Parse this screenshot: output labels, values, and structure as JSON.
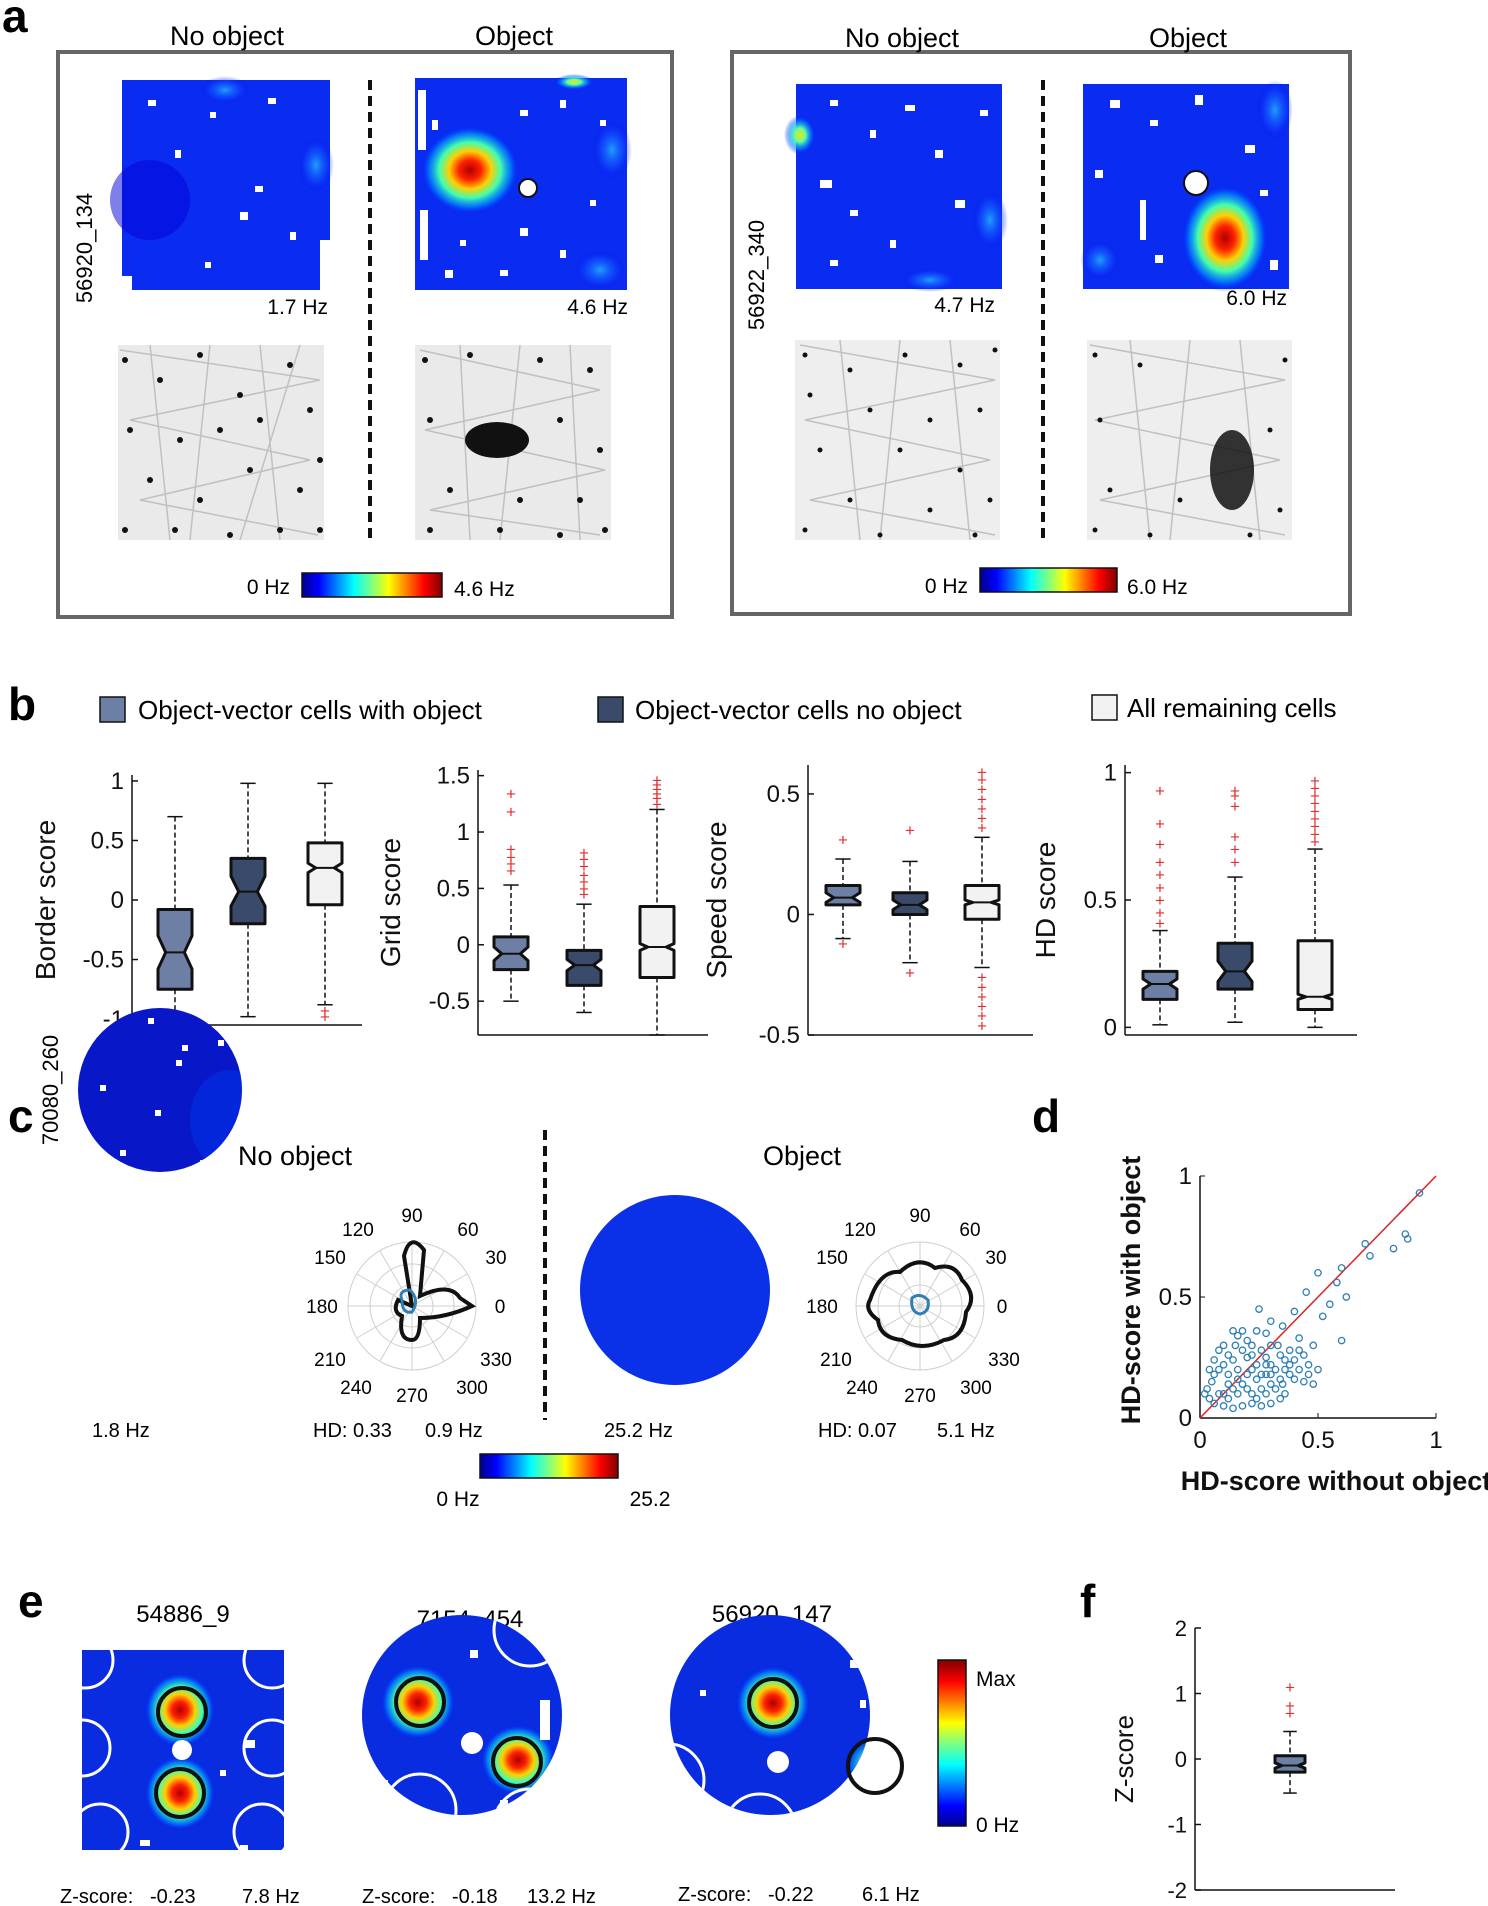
{
  "panel_labels": [
    "a",
    "b",
    "c",
    "d",
    "e",
    "f"
  ],
  "colorscale": {
    "jet": [
      "#00008f",
      "#0000ff",
      "#0080ff",
      "#00ffff",
      "#80ff80",
      "#ffff00",
      "#ff8000",
      "#ff0000",
      "#800000"
    ],
    "white": "#ffffff",
    "object_fill": "#ffffff"
  },
  "panel_a": {
    "cells": [
      {
        "cell_id": "56920_134",
        "no_object": {
          "title": "No object",
          "peak": "1.7 Hz"
        },
        "object": {
          "title": "Object",
          "peak": "4.6 Hz"
        },
        "colorbar": {
          "min": "0 Hz",
          "max": "4.6 Hz"
        }
      },
      {
        "cell_id": "56922_340",
        "no_object": {
          "title": "No object",
          "peak": "4.7 Hz"
        },
        "object": {
          "title": "Object",
          "peak": "6.0 Hz"
        },
        "colorbar": {
          "min": "0 Hz",
          "max": "6.0 Hz"
        }
      }
    ]
  },
  "panel_b": {
    "legend": [
      {
        "label": "Object-vector cells with object",
        "color": "#6e7fa6"
      },
      {
        "label": "Object-vector cells no object",
        "color": "#3a4a6b"
      },
      {
        "label": "All remaining cells",
        "color": "#f2f2f2"
      }
    ],
    "outlier_color": "#e03030"
  },
  "chart_data": [
    {
      "type": "box",
      "ylabel": "Border score",
      "ylim": [
        -1.05,
        1.05
      ],
      "yticks": [
        -1,
        -0.5,
        0,
        0.5,
        1
      ],
      "ytick_labels": [
        "-1",
        "-0.5",
        "0",
        "0.5",
        "1"
      ],
      "categories": [
        "Object-vector cells with object",
        "Object-vector cells no object",
        "All remaining cells"
      ],
      "boxes": [
        {
          "q1": -0.75,
          "median": -0.44,
          "q3": -0.08,
          "notch_lo": -0.58,
          "notch_hi": -0.3,
          "whisker_lo": -0.98,
          "whisker_hi": 0.7,
          "outliers": []
        },
        {
          "q1": -0.2,
          "median": 0.07,
          "q3": 0.35,
          "notch_lo": -0.05,
          "notch_hi": 0.2,
          "whisker_lo": -0.98,
          "whisker_hi": 0.98,
          "outliers": []
        },
        {
          "q1": -0.04,
          "median": 0.27,
          "q3": 0.48,
          "notch_lo": 0.23,
          "notch_hi": 0.31,
          "whisker_lo": -0.88,
          "whisker_hi": 0.98,
          "outliers": [
            -0.93,
            -0.98
          ]
        }
      ]
    },
    {
      "type": "box",
      "ylabel": "Grid score",
      "ylim": [
        -0.8,
        1.55
      ],
      "yticks": [
        -0.5,
        0,
        0.5,
        1,
        1.5
      ],
      "ytick_labels": [
        "-0.5",
        "0",
        "0.5",
        "1",
        "1.5"
      ],
      "categories": [
        "Object-vector cells with object",
        "Object-vector cells no object",
        "All remaining cells"
      ],
      "boxes": [
        {
          "q1": -0.22,
          "median": -0.08,
          "q3": 0.07,
          "notch_lo": -0.14,
          "notch_hi": -0.02,
          "whisker_lo": -0.5,
          "whisker_hi": 0.53,
          "outliers": [
            0.66,
            0.72,
            0.78,
            0.85,
            1.18,
            1.34
          ]
        },
        {
          "q1": -0.36,
          "median": -0.18,
          "q3": -0.05,
          "notch_lo": -0.23,
          "notch_hi": -0.13,
          "whisker_lo": -0.6,
          "whisker_hi": 0.36,
          "outliers": [
            0.45,
            0.5,
            0.56,
            0.62,
            0.7,
            0.76,
            0.82
          ]
        },
        {
          "q1": -0.29,
          "median": -0.02,
          "q3": 0.34,
          "notch_lo": -0.05,
          "notch_hi": 0.01,
          "whisker_lo": -0.8,
          "whisker_hi": 1.2,
          "outliers": [
            1.25,
            1.3,
            1.34,
            1.38,
            1.42,
            1.46
          ]
        }
      ]
    },
    {
      "type": "box",
      "ylabel": "Speed score",
      "ylim": [
        -0.5,
        0.62
      ],
      "yticks": [
        -0.5,
        0,
        0.5
      ],
      "ytick_labels": [
        "-0.5",
        "0",
        "0.5"
      ],
      "categories": [
        "Object-vector cells with object",
        "Object-vector cells no object",
        "All remaining cells"
      ],
      "boxes": [
        {
          "q1": 0.04,
          "median": 0.07,
          "q3": 0.12,
          "notch_lo": 0.05,
          "notch_hi": 0.09,
          "whisker_lo": -0.1,
          "whisker_hi": 0.23,
          "outliers": [
            0.31,
            -0.12
          ]
        },
        {
          "q1": 0.0,
          "median": 0.04,
          "q3": 0.09,
          "notch_lo": 0.02,
          "notch_hi": 0.06,
          "whisker_lo": -0.2,
          "whisker_hi": 0.22,
          "outliers": [
            0.35,
            -0.24
          ]
        },
        {
          "q1": -0.02,
          "median": 0.05,
          "q3": 0.12,
          "notch_lo": 0.04,
          "notch_hi": 0.06,
          "whisker_lo": -0.22,
          "whisker_hi": 0.32,
          "outliers": [
            0.36,
            0.4,
            0.44,
            0.48,
            0.52,
            0.56,
            0.59,
            -0.26,
            -0.3,
            -0.34,
            -0.38,
            -0.42,
            -0.46
          ]
        }
      ]
    },
    {
      "type": "box",
      "ylabel": "HD score",
      "ylim": [
        -0.03,
        1.03
      ],
      "yticks": [
        0,
        0.5,
        1
      ],
      "ytick_labels": [
        "0",
        "0.5",
        "1"
      ],
      "categories": [
        "Object-vector cells with object",
        "Object-vector cells no object",
        "All remaining cells"
      ],
      "boxes": [
        {
          "q1": 0.11,
          "median": 0.17,
          "q3": 0.22,
          "notch_lo": 0.15,
          "notch_hi": 0.19,
          "whisker_lo": 0.01,
          "whisker_hi": 0.38,
          "outliers": [
            0.41,
            0.45,
            0.5,
            0.55,
            0.6,
            0.65,
            0.72,
            0.8,
            0.93
          ]
        },
        {
          "q1": 0.15,
          "median": 0.22,
          "q3": 0.33,
          "notch_lo": 0.18,
          "notch_hi": 0.26,
          "whisker_lo": 0.02,
          "whisker_hi": 0.59,
          "outliers": [
            0.65,
            0.7,
            0.75,
            0.87,
            0.91,
            0.93
          ]
        },
        {
          "q1": 0.07,
          "median": 0.12,
          "q3": 0.34,
          "notch_lo": 0.11,
          "notch_hi": 0.13,
          "whisker_lo": 0.0,
          "whisker_hi": 0.7,
          "outliers": [
            0.73,
            0.76,
            0.79,
            0.82,
            0.85,
            0.88,
            0.91,
            0.94,
            0.97
          ]
        }
      ]
    },
    {
      "type": "scatter",
      "xlabel": "HD-score without object",
      "ylabel": "HD-score with object",
      "xlim": [
        0,
        1
      ],
      "ylim": [
        0,
        1
      ],
      "xticks": [
        0,
        0.5,
        1
      ],
      "xtick_labels": [
        "0",
        "0.5",
        "1"
      ],
      "yticks": [
        0,
        0.5,
        1
      ],
      "ytick_labels": [
        "0",
        "0.5",
        "1"
      ],
      "identity_line": true,
      "marker_color": "#2f7fb5",
      "line_color": "#e02020",
      "points": [
        [
          0.93,
          0.93
        ],
        [
          0.88,
          0.74
        ],
        [
          0.87,
          0.76
        ],
        [
          0.82,
          0.7
        ],
        [
          0.72,
          0.67
        ],
        [
          0.7,
          0.72
        ],
        [
          0.6,
          0.62
        ],
        [
          0.58,
          0.56
        ],
        [
          0.5,
          0.6
        ],
        [
          0.45,
          0.52
        ],
        [
          0.55,
          0.47
        ],
        [
          0.62,
          0.5
        ],
        [
          0.6,
          0.32
        ],
        [
          0.52,
          0.42
        ],
        [
          0.4,
          0.44
        ],
        [
          0.35,
          0.38
        ],
        [
          0.3,
          0.4
        ],
        [
          0.28,
          0.35
        ],
        [
          0.25,
          0.45
        ],
        [
          0.22,
          0.3
        ],
        [
          0.42,
          0.33
        ],
        [
          0.48,
          0.3
        ],
        [
          0.38,
          0.28
        ],
        [
          0.33,
          0.3
        ],
        [
          0.3,
          0.22
        ],
        [
          0.28,
          0.25
        ],
        [
          0.26,
          0.18
        ],
        [
          0.24,
          0.22
        ],
        [
          0.22,
          0.2
        ],
        [
          0.2,
          0.25
        ],
        [
          0.18,
          0.28
        ],
        [
          0.16,
          0.2
        ],
        [
          0.15,
          0.3
        ],
        [
          0.14,
          0.24
        ],
        [
          0.12,
          0.18
        ],
        [
          0.1,
          0.22
        ],
        [
          0.08,
          0.2
        ],
        [
          0.06,
          0.18
        ],
        [
          0.05,
          0.15
        ],
        [
          0.04,
          0.2
        ],
        [
          0.03,
          0.12
        ],
        [
          0.02,
          0.1
        ],
        [
          0.1,
          0.1
        ],
        [
          0.12,
          0.08
        ],
        [
          0.14,
          0.12
        ],
        [
          0.16,
          0.1
        ],
        [
          0.18,
          0.14
        ],
        [
          0.2,
          0.12
        ],
        [
          0.22,
          0.1
        ],
        [
          0.24,
          0.08
        ],
        [
          0.26,
          0.12
        ],
        [
          0.28,
          0.1
        ],
        [
          0.3,
          0.14
        ],
        [
          0.32,
          0.12
        ],
        [
          0.34,
          0.16
        ],
        [
          0.36,
          0.2
        ],
        [
          0.38,
          0.18
        ],
        [
          0.4,
          0.16
        ],
        [
          0.42,
          0.2
        ],
        [
          0.44,
          0.15
        ],
        [
          0.46,
          0.18
        ],
        [
          0.48,
          0.14
        ],
        [
          0.36,
          0.1
        ],
        [
          0.34,
          0.08
        ],
        [
          0.3,
          0.06
        ],
        [
          0.26,
          0.05
        ],
        [
          0.22,
          0.06
        ],
        [
          0.18,
          0.05
        ],
        [
          0.14,
          0.04
        ],
        [
          0.1,
          0.05
        ],
        [
          0.06,
          0.06
        ],
        [
          0.08,
          0.1
        ],
        [
          0.04,
          0.08
        ],
        [
          0.12,
          0.14
        ],
        [
          0.16,
          0.16
        ],
        [
          0.2,
          0.18
        ],
        [
          0.24,
          0.16
        ],
        [
          0.28,
          0.18
        ],
        [
          0.32,
          0.2
        ],
        [
          0.36,
          0.24
        ],
        [
          0.4,
          0.24
        ],
        [
          0.44,
          0.26
        ],
        [
          0.2,
          0.32
        ],
        [
          0.18,
          0.36
        ],
        [
          0.16,
          0.34
        ],
        [
          0.22,
          0.26
        ],
        [
          0.26,
          0.28
        ],
        [
          0.3,
          0.3
        ],
        [
          0.34,
          0.26
        ],
        [
          0.12,
          0.26
        ],
        [
          0.08,
          0.28
        ],
        [
          0.1,
          0.3
        ],
        [
          0.14,
          0.36
        ],
        [
          0.06,
          0.24
        ],
        [
          0.24,
          0.36
        ],
        [
          0.28,
          0.22
        ],
        [
          0.38,
          0.22
        ],
        [
          0.42,
          0.28
        ],
        [
          0.46,
          0.22
        ],
        [
          0.5,
          0.2
        ],
        [
          0.35,
          0.14
        ],
        [
          0.3,
          0.18
        ]
      ]
    },
    {
      "type": "box",
      "ylabel": "Z-score",
      "ylim": [
        -2,
        2
      ],
      "yticks": [
        -2,
        -1,
        0,
        1,
        2
      ],
      "ytick_labels": [
        "-2",
        "-1",
        "0",
        "1",
        "2"
      ],
      "categories": [
        ""
      ],
      "boxes": [
        {
          "q1": -0.2,
          "median": -0.1,
          "q3": 0.05,
          "notch_lo": -0.14,
          "notch_hi": -0.06,
          "whisker_lo": -0.52,
          "whisker_hi": 0.42,
          "outliers": [
            0.7,
            0.82,
            1.1
          ]
        }
      ]
    }
  ],
  "panel_c": {
    "cell_id": "70080_260",
    "no_object": {
      "title": "No object",
      "peak": "1.8 Hz",
      "hd_label": "HD: 0.33",
      "polar_peak": "0.9 Hz"
    },
    "object": {
      "title": "Object",
      "peak": "25.2 Hz",
      "hd_label": "HD: 0.07",
      "polar_peak": "5.1 Hz"
    },
    "angles": [
      "90",
      "60",
      "30",
      "0",
      "330",
      "300",
      "270",
      "240",
      "210",
      "180",
      "150",
      "120"
    ],
    "colorbar": {
      "min": "0 Hz",
      "max": "25.2"
    }
  },
  "panel_e": {
    "cells": [
      {
        "cell_id": "54886_9",
        "z_label": "Z-score:",
        "z_value": "-0.23",
        "peak": "7.8 Hz"
      },
      {
        "cell_id": "7154_454",
        "z_label": "Z-score:",
        "z_value": "-0.18",
        "peak": "13.2 Hz"
      },
      {
        "cell_id": "56920_147",
        "z_label": "Z-score:",
        "z_value": "-0.22",
        "peak": "6.1 Hz"
      }
    ],
    "colorbar": {
      "max": "Max",
      "min": "0 Hz"
    }
  }
}
